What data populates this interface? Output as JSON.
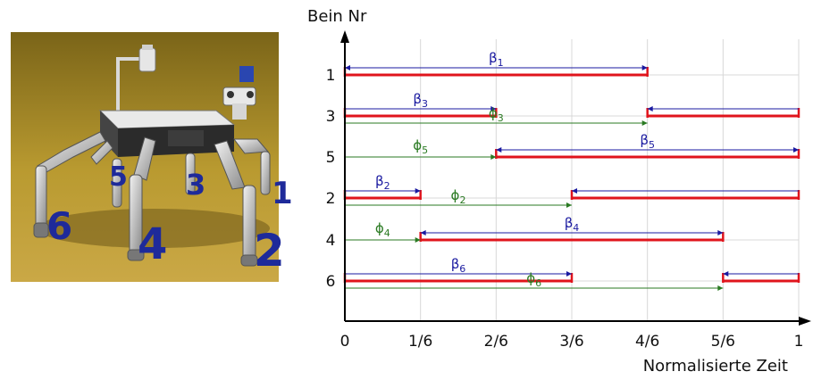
{
  "photo": {
    "leg_numbers": [
      "5",
      "3",
      "1",
      "6",
      "4",
      "2"
    ]
  },
  "chart_data": {
    "type": "gantt",
    "ylabel": "Bein Nr",
    "xlabel": "Normalisierte Zeit",
    "x_ticks": [
      "0",
      "1/6",
      "2/6",
      "3/6",
      "4/6",
      "5/6",
      "1"
    ],
    "xlim": [
      0,
      1
    ],
    "grid": true,
    "colors": {
      "bar": "#e0141c",
      "beta": "#1a1aa0",
      "phi": "#2a7a22",
      "grid": "#d8d8d8"
    },
    "legs": [
      {
        "label": "1",
        "intervals": [
          [
            0,
            0.6667
          ]
        ],
        "beta": {
          "label": "β",
          "sub": "1",
          "from": 0,
          "to": 0.6667,
          "wrap": false
        },
        "phi": null
      },
      {
        "label": "3",
        "intervals": [
          [
            0,
            0.3333
          ],
          [
            0.6667,
            1
          ]
        ],
        "beta": {
          "label": "β",
          "sub": "3",
          "from": 0.6667,
          "to": 0.3333,
          "wrap": true
        },
        "phi": {
          "label": "ϕ",
          "sub": "3",
          "from": 0,
          "to": 0.6667
        }
      },
      {
        "label": "5",
        "intervals": [
          [
            0.3333,
            1
          ]
        ],
        "beta": {
          "label": "β",
          "sub": "5",
          "from": 0.3333,
          "to": 1,
          "wrap": false
        },
        "phi": {
          "label": "ϕ",
          "sub": "5",
          "from": 0,
          "to": 0.3333
        }
      },
      {
        "label": "2",
        "intervals": [
          [
            0,
            0.1667
          ],
          [
            0.5,
            1
          ]
        ],
        "beta": {
          "label": "β",
          "sub": "2",
          "from": 0.5,
          "to": 0.1667,
          "wrap": true
        },
        "phi": {
          "label": "ϕ",
          "sub": "2",
          "from": 0,
          "to": 0.5
        }
      },
      {
        "label": "4",
        "intervals": [
          [
            0.1667,
            0.8333
          ]
        ],
        "beta": {
          "label": "β",
          "sub": "4",
          "from": 0.1667,
          "to": 0.8333,
          "wrap": false
        },
        "phi": {
          "label": "ϕ",
          "sub": "4",
          "from": 0,
          "to": 0.1667
        }
      },
      {
        "label": "6",
        "intervals": [
          [
            0,
            0.5
          ],
          [
            0.8333,
            1
          ]
        ],
        "beta": {
          "label": "β",
          "sub": "6",
          "from": 0.8333,
          "to": 0.5,
          "wrap": true
        },
        "phi": {
          "label": "ϕ",
          "sub": "6",
          "from": 0,
          "to": 0.8333
        }
      }
    ]
  }
}
